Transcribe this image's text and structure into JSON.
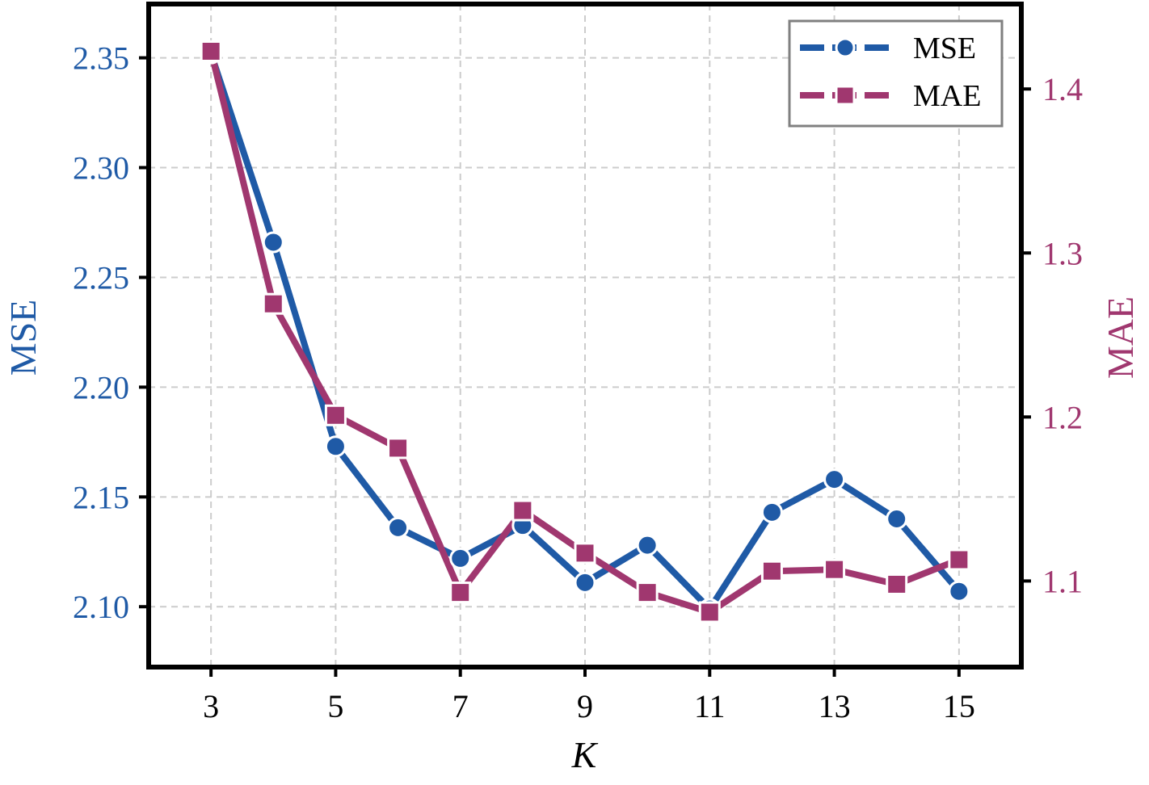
{
  "chart_data": {
    "type": "line",
    "x": [
      3,
      4,
      5,
      6,
      7,
      8,
      9,
      10,
      11,
      12,
      13,
      14,
      15
    ],
    "xlabel": "K",
    "x_ticks": [
      "3",
      "5",
      "7",
      "9",
      "11",
      "13",
      "15"
    ],
    "xlim": [
      2.0,
      16.0
    ],
    "grid": true,
    "legend_position": "top-right",
    "series": [
      {
        "name": "MSE",
        "axis": "left",
        "marker": "circle",
        "color": "#1f5aa6",
        "values": [
          2.352,
          2.266,
          2.173,
          2.136,
          2.122,
          2.137,
          2.111,
          2.128,
          2.099,
          2.143,
          2.158,
          2.14,
          2.107
        ]
      },
      {
        "name": "MAE",
        "axis": "right",
        "marker": "square",
        "color": "#a0376f",
        "values": [
          1.423,
          1.269,
          1.201,
          1.181,
          1.093,
          1.143,
          1.117,
          1.093,
          1.081,
          1.106,
          1.107,
          1.098,
          1.113
        ]
      }
    ],
    "left_axis": {
      "label": "MSE",
      "ticks": [
        "2.10",
        "2.15",
        "2.20",
        "2.25",
        "2.30",
        "2.35"
      ],
      "ylim": [
        2.0725,
        2.3745
      ],
      "color": "#1f5aa6"
    },
    "right_axis": {
      "label": "MAE",
      "ticks": [
        "1.1",
        "1.2",
        "1.3",
        "1.4"
      ],
      "ylim": [
        1.0475,
        1.4518
      ],
      "color": "#a0376f"
    }
  }
}
